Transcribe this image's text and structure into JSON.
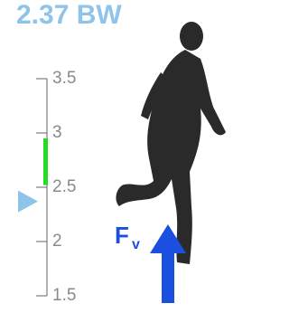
{
  "chart_data": {
    "type": "gauge",
    "values": [
      2.37
    ],
    "value_labels": [
      "2.37 BW"
    ],
    "marker_color": "#8ec3ea",
    "band": [
      2.52,
      2.95
    ],
    "band_color": "#22dd22",
    "ylim": [
      1.5,
      3.5
    ],
    "yticks": [
      1.5,
      2,
      2.5,
      3,
      3.5
    ],
    "force_label": [
      "F",
      "v"
    ],
    "force_color": "#1a4fe0"
  }
}
